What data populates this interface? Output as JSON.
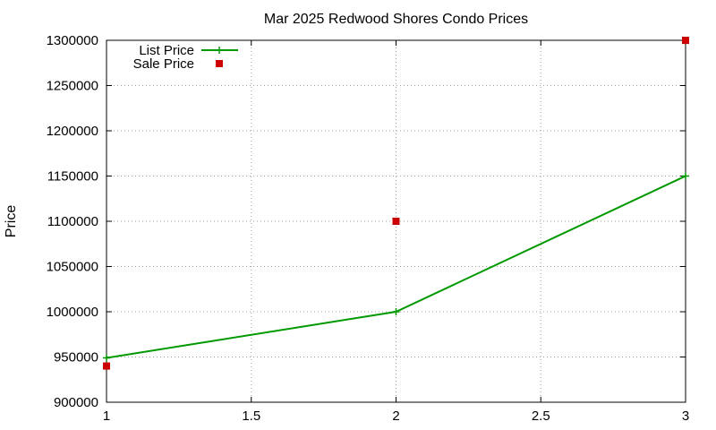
{
  "chart_data": {
    "type": "line",
    "title": "Mar 2025 Redwood Shores Condo Prices",
    "xlabel": "",
    "ylabel": "Price",
    "xlim": [
      1,
      3
    ],
    "ylim": [
      900000,
      1300000
    ],
    "x_ticks": [
      "1",
      "1.5",
      "2",
      "2.5",
      "3"
    ],
    "y_ticks": [
      "900000",
      "950000",
      "1000000",
      "1050000",
      "1100000",
      "1150000",
      "1200000",
      "1250000",
      "1300000"
    ],
    "grid": true,
    "legend_position": "top-left",
    "series": [
      {
        "name": "List Price",
        "style": "line+cross",
        "color": "#009900",
        "x": [
          1,
          2,
          3
        ],
        "y": [
          949000,
          1000000,
          1150000
        ]
      },
      {
        "name": "Sale Price",
        "style": "square-points",
        "color": "#cc0000",
        "x": [
          1,
          2,
          3
        ],
        "y": [
          940000,
          1100000,
          1300000
        ]
      }
    ]
  }
}
